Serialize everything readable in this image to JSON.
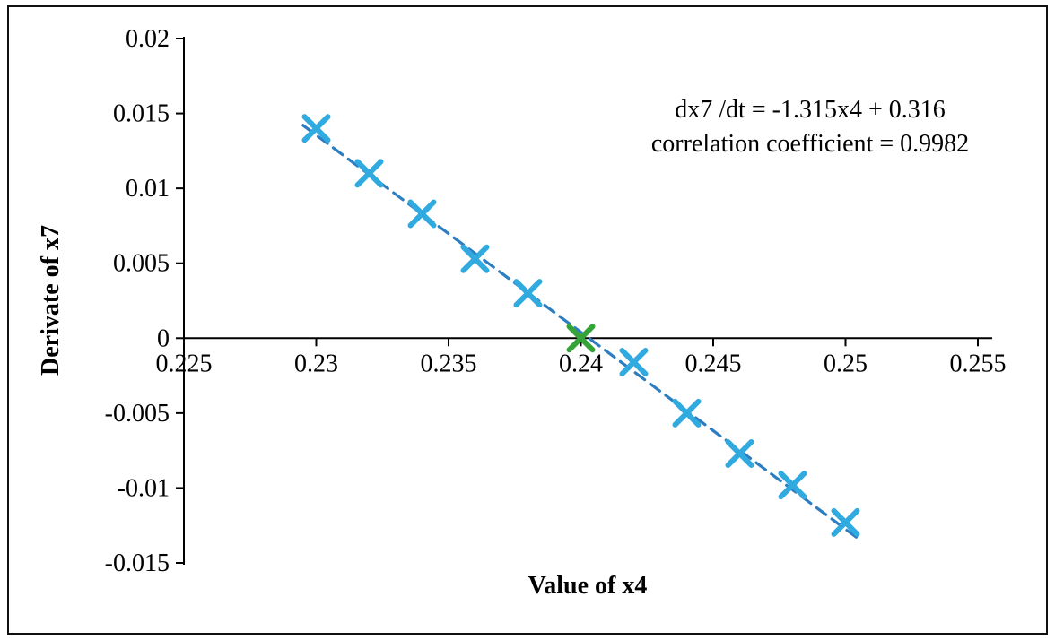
{
  "chart_data": {
    "type": "scatter",
    "title": "",
    "xlabel": "Value of x4",
    "ylabel": "Derivate of x7",
    "x": [
      0.23,
      0.232,
      0.234,
      0.236,
      0.238,
      0.24,
      0.242,
      0.244,
      0.246,
      0.248,
      0.25
    ],
    "y": [
      0.014,
      0.011,
      0.0083,
      0.0053,
      0.003,
      0.0,
      -0.0016,
      -0.005,
      -0.0077,
      -0.0098,
      -0.0123
    ],
    "highlight_index": 5,
    "xlim": [
      0.225,
      0.255
    ],
    "ylim": [
      -0.015,
      0.02
    ],
    "x_ticks": [
      0.225,
      0.23,
      0.235,
      0.24,
      0.245,
      0.25,
      0.255
    ],
    "x_tick_labels": [
      "0.225",
      "0.23",
      "0.235",
      "0.24",
      "0.245",
      "0.25",
      "0.255"
    ],
    "y_ticks": [
      0.02,
      0.015,
      0.01,
      0.005,
      0,
      -0.005,
      -0.01,
      -0.015
    ],
    "y_tick_labels": [
      "0.02",
      "0.015",
      "0.01",
      "0.005",
      "0",
      "-0.005",
      "-0.01",
      "-0.015"
    ],
    "trendline": {
      "slope": -1.315,
      "intercept": 0.316,
      "x_start": 0.2295,
      "x_end": 0.2505,
      "style": "dashed"
    },
    "annotation": {
      "line1": "dx7 /dt = -1.315x4 + 0.316",
      "line2": "correlation coefficient = 0.9982"
    },
    "legend": false,
    "grid": false,
    "colors": {
      "marker": "#31AADF",
      "highlight_marker": "#36A339",
      "trendline": "#2D7DC1",
      "axis": "#000000",
      "text": "#000000"
    }
  }
}
